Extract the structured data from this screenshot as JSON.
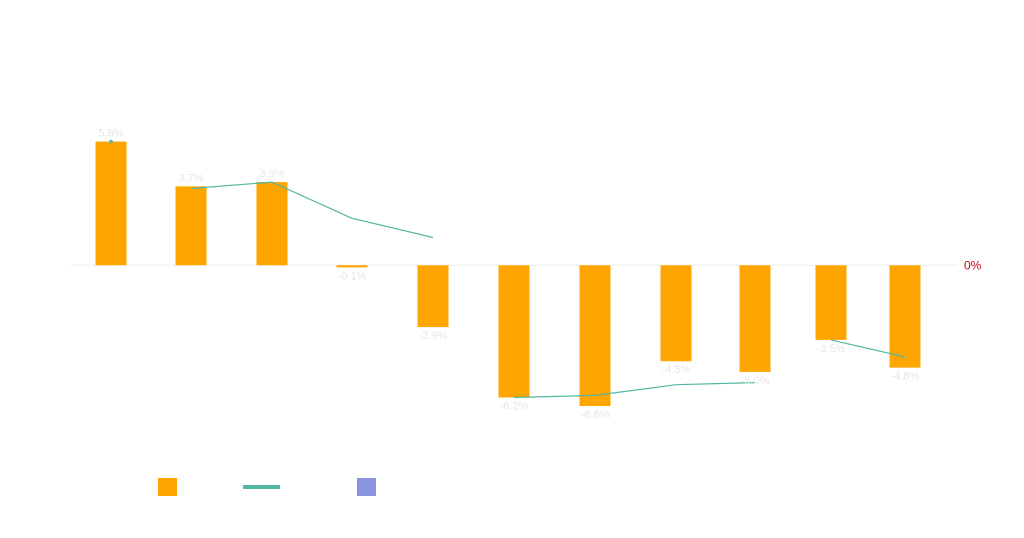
{
  "chart_data": {
    "type": "bar",
    "categories": [
      "1",
      "2",
      "3",
      "4",
      "5",
      "6",
      "7",
      "8",
      "9",
      "10",
      "11"
    ],
    "series": [
      {
        "kind": "bar",
        "color": "#ffa500",
        "values": [
          5.8,
          3.7,
          3.9,
          -0.1,
          -2.9,
          -6.2,
          -6.6,
          -4.5,
          -5.0,
          -3.5,
          -4.8
        ],
        "labels": [
          "5.8%",
          "3.7%",
          "3.9%",
          "-0.1%",
          "-2.9%",
          "-6.2%",
          "-6.6%",
          "-4.5%",
          "-5.0%",
          "-3.5%",
          "-4.8%"
        ]
      },
      {
        "kind": "line",
        "color": "#52b7a3",
        "segments": [
          [
            [
              0,
              5.8
            ]
          ],
          [
            [
              1,
              3.6
            ],
            [
              2,
              3.9
            ],
            [
              3,
              2.2
            ],
            [
              4,
              1.3
            ]
          ],
          [
            [
              5,
              -6.2
            ],
            [
              6,
              -6.1
            ],
            [
              7,
              -5.6
            ],
            [
              8,
              -5.5
            ]
          ],
          [
            [
              9,
              -3.5
            ],
            [
              10,
              -4.3
            ]
          ]
        ]
      }
    ],
    "reference_line": {
      "value": 0,
      "label": "0%",
      "color": "#d0021b"
    },
    "legend": {
      "position": "bottom-left",
      "items": [
        {
          "shape": "square",
          "color": "#ffa500"
        },
        {
          "shape": "line",
          "color": "#52b7a3"
        },
        {
          "shape": "square",
          "color": "#8b93de"
        }
      ]
    },
    "ylim": [
      -9.6,
      11.5
    ],
    "grid": false
  }
}
